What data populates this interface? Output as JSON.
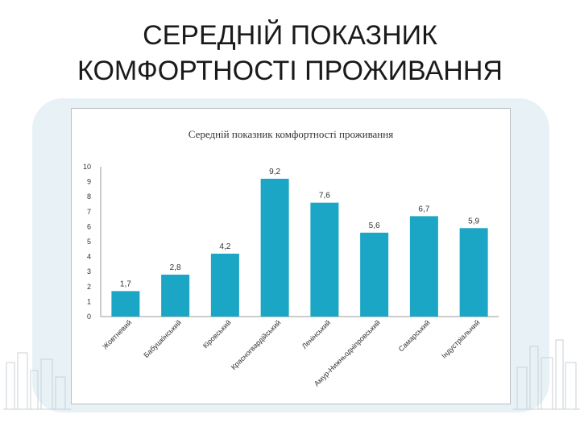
{
  "slide": {
    "title_line1": "СЕРЕДНІЙ ПОКАЗНИК",
    "title_line2": "КОМФОРТНОСТІ ПРОЖИВАННЯ"
  },
  "colors": {
    "bar": "#1aa6c4",
    "axis": "#9a9a9a",
    "text": "#333333",
    "panel": "#e8f2f6"
  },
  "chart_data": {
    "type": "bar",
    "title": "Середній показник комфортності проживання",
    "categories": [
      "Жовтневий",
      "Бабушкінський",
      "Кіровський",
      "Красногвардійський",
      "Ленінський",
      "Амур-Нижньодніпровський",
      "Самарський",
      "Індустріальний"
    ],
    "values": [
      1.7,
      2.8,
      4.2,
      9.2,
      7.6,
      5.6,
      6.7,
      5.9
    ],
    "value_labels": [
      "1,7",
      "2,8",
      "4,2",
      "9,2",
      "7,6",
      "5,6",
      "6,7",
      "5,9"
    ],
    "ylim": [
      0,
      10
    ],
    "yticks": [
      0,
      1,
      2,
      3,
      4,
      5,
      6,
      7,
      8,
      9,
      10
    ],
    "xlabel": "",
    "ylabel": "",
    "grid": false,
    "legend": "none"
  }
}
